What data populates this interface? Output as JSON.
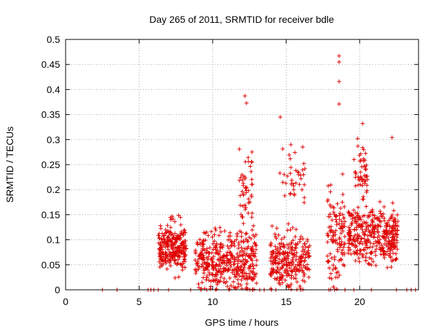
{
  "chart_data": {
    "type": "scatter",
    "title": "Day 265 of 2011, SRMTID for receiver bdle",
    "xlabel": "GPS time / hours",
    "ylabel": "SRMTID / TECUs",
    "xlim": [
      0,
      24
    ],
    "ylim": [
      0,
      0.5
    ],
    "xticks": [
      0,
      5,
      10,
      15,
      20
    ],
    "xtick_labels": [
      "0",
      "5",
      "10",
      "15",
      "20"
    ],
    "yticks": [
      0,
      0.05,
      0.1,
      0.15,
      0.2,
      0.25,
      0.3,
      0.35,
      0.4,
      0.45,
      0.5
    ],
    "ytick_labels": [
      "0",
      "0.05",
      "0.1",
      "0.15",
      "0.2",
      "0.25",
      "0.3",
      "0.35",
      "0.4",
      "0.45",
      "0.5"
    ],
    "grid": true,
    "legend": "none",
    "marker": "plus",
    "series": [
      {
        "name": "SRMTID",
        "color": "#e00000",
        "points_note": "dense scatter of ~1500 points; clustered measurements between 6 and 23 hours with peak values near 18.5 h (~0.47) and sparse zero values outside",
        "peaks": [
          {
            "x": 12.2,
            "y": 0.387
          },
          {
            "x": 12.3,
            "y": 0.373
          },
          {
            "x": 14.6,
            "y": 0.345
          },
          {
            "x": 18.6,
            "y": 0.467
          },
          {
            "x": 18.6,
            "y": 0.455
          },
          {
            "x": 18.6,
            "y": 0.416
          },
          {
            "x": 18.6,
            "y": 0.371
          },
          {
            "x": 20.2,
            "y": 0.332
          },
          {
            "x": 22.2,
            "y": 0.304
          }
        ],
        "clusters": [
          {
            "x_start": 6.3,
            "x_end": 8.2,
            "y_center": 0.085,
            "y_spread": 0.045,
            "count": 260
          },
          {
            "x_start": 8.8,
            "x_end": 13.0,
            "y_center": 0.06,
            "y_spread": 0.055,
            "count": 420
          },
          {
            "x_start": 11.8,
            "x_end": 12.7,
            "y_center": 0.2,
            "y_spread": 0.07,
            "count": 50
          },
          {
            "x_start": 13.9,
            "x_end": 16.6,
            "y_center": 0.06,
            "y_spread": 0.05,
            "count": 260
          },
          {
            "x_start": 14.5,
            "x_end": 16.3,
            "y_center": 0.22,
            "y_spread": 0.06,
            "count": 40
          },
          {
            "x_start": 17.8,
            "x_end": 19.0,
            "y_center": 0.1,
            "y_spread": 0.09,
            "count": 120
          },
          {
            "x_start": 19.2,
            "x_end": 22.6,
            "y_center": 0.11,
            "y_spread": 0.05,
            "count": 380
          },
          {
            "x_start": 19.6,
            "x_end": 20.6,
            "y_center": 0.24,
            "y_spread": 0.05,
            "count": 50
          }
        ],
        "zero_points_x": [
          2.5,
          3.5,
          5.6,
          5.8,
          6.0,
          6.3,
          7.0,
          8.5,
          9.2,
          9.6,
          10.2,
          11.1,
          12.7,
          13.2,
          13.5,
          14.0,
          14.3,
          16.0,
          17.9,
          18.3,
          19.0,
          19.6,
          20.8,
          22.5,
          23.2,
          23.5,
          23.8
        ]
      }
    ]
  }
}
